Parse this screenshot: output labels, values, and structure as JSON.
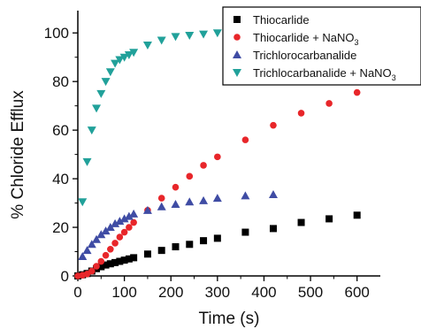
{
  "chart_data": {
    "type": "scatter",
    "xlabel": "Time (s)",
    "ylabel": "% Chloride Efflux",
    "xlim": [
      0,
      650
    ],
    "ylim": [
      0,
      107
    ],
    "xticks": [
      0,
      100,
      200,
      300,
      400,
      500,
      600
    ],
    "yticks": [
      0,
      20,
      40,
      60,
      80,
      100
    ],
    "grid": false,
    "legend_position": "top-right",
    "series": [
      {
        "name": "Thiocarlide",
        "marker": "square",
        "color": "#000000",
        "x": [
          0,
          10,
          20,
          30,
          40,
          50,
          60,
          70,
          80,
          90,
          100,
          110,
          120,
          150,
          180,
          210,
          240,
          270,
          300,
          360,
          420,
          480,
          540,
          600
        ],
        "y": [
          0,
          0.5,
          1.0,
          2.0,
          3.0,
          3.8,
          4.5,
          5.0,
          5.5,
          6.0,
          6.5,
          7.0,
          7.5,
          9.0,
          10.5,
          12.0,
          13.0,
          14.5,
          15.5,
          18.0,
          19.5,
          22.0,
          23.5,
          25.0
        ]
      },
      {
        "name": "Thiocarlide + NaNO3",
        "marker": "circle",
        "color": "#e8262a",
        "x": [
          0,
          10,
          20,
          30,
          40,
          50,
          60,
          70,
          80,
          90,
          100,
          110,
          120,
          150,
          180,
          210,
          240,
          270,
          300,
          360,
          420,
          480,
          540,
          600
        ],
        "y": [
          0,
          0.3,
          0.8,
          2.0,
          4.0,
          6.0,
          8.5,
          11.0,
          13.5,
          16.0,
          18.0,
          20.0,
          22.0,
          27.0,
          32.0,
          36.5,
          41.0,
          45.5,
          49.0,
          56.0,
          62.0,
          67.0,
          71.0,
          75.5
        ]
      },
      {
        "name": "Trichlorocarbanalide",
        "marker": "triangle-up",
        "color": "#3f4ca4",
        "x": [
          10,
          20,
          30,
          40,
          50,
          60,
          70,
          80,
          90,
          100,
          110,
          120,
          150,
          180,
          210,
          240,
          270,
          300,
          360,
          420
        ],
        "y": [
          8.0,
          10.5,
          13.0,
          15.0,
          17.0,
          18.5,
          20.0,
          21.5,
          22.5,
          23.5,
          24.5,
          25.5,
          27.0,
          28.5,
          29.5,
          30.5,
          31.0,
          32.0,
          33.0,
          33.5
        ]
      },
      {
        "name": "Trichlocarbanalide + NaNO3",
        "marker": "triangle-down",
        "color": "#21a19a",
        "x": [
          10,
          20,
          30,
          40,
          50,
          60,
          70,
          80,
          90,
          100,
          110,
          120,
          150,
          180,
          210,
          240,
          270,
          300
        ],
        "y": [
          30.5,
          47.0,
          60.0,
          69.0,
          75.0,
          80.0,
          84.0,
          87.5,
          89.0,
          90.0,
          91.0,
          92.0,
          95.0,
          97.0,
          98.5,
          99.0,
          99.5,
          100.0
        ]
      }
    ]
  }
}
